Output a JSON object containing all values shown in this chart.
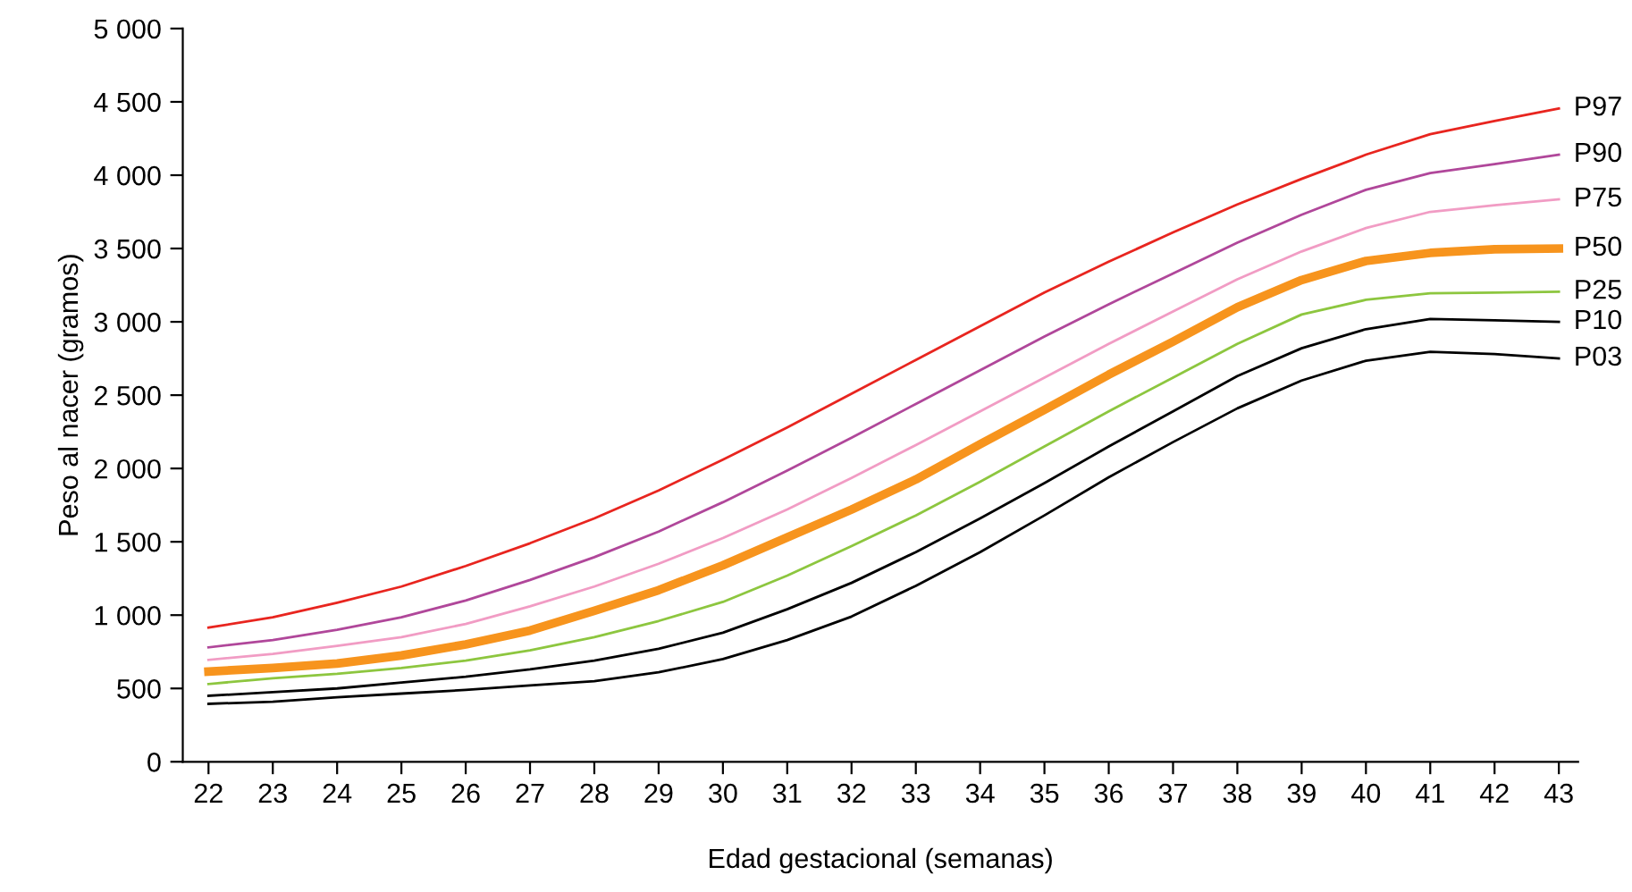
{
  "chart_data": {
    "type": "line",
    "xlabel": "Edad gestacional (semanas)",
    "ylabel": "Peso al nacer (gramos)",
    "x": [
      22,
      23,
      24,
      25,
      26,
      27,
      28,
      29,
      30,
      31,
      32,
      33,
      34,
      35,
      36,
      37,
      38,
      39,
      40,
      41,
      42,
      43
    ],
    "xlim": [
      21.6,
      43.3
    ],
    "xticks": [
      22,
      23,
      24,
      25,
      26,
      27,
      28,
      29,
      30,
      31,
      32,
      33,
      34,
      35,
      36,
      37,
      38,
      39,
      40,
      41,
      42,
      43
    ],
    "ylim": [
      0,
      5000
    ],
    "yticks": [
      0,
      500,
      {
        "value": 1000,
        "label": "1 000"
      },
      {
        "value": 1500,
        "label": "1 500"
      },
      {
        "value": 2000,
        "label": "2 000"
      },
      {
        "value": 2500,
        "label": "2 500"
      },
      {
        "value": 3000,
        "label": "3 000"
      },
      {
        "value": 3500,
        "label": "3 500"
      },
      {
        "value": 4000,
        "label": "4 000"
      },
      {
        "value": 4500,
        "label": "4 500"
      },
      {
        "value": 5000,
        "label": "5 000"
      }
    ],
    "grid": false,
    "legend": false,
    "marker": "none",
    "line_style": "solid",
    "series": [
      {
        "name": "P97",
        "color": "#e8251f",
        "values": [
          915,
          985,
          1085,
          1195,
          1335,
          1490,
          1660,
          1850,
          2060,
          2280,
          2510,
          2740,
          2970,
          3200,
          3410,
          3610,
          3800,
          3975,
          4140,
          4280,
          4370,
          4455
        ]
      },
      {
        "name": "P90",
        "color": "#b0479a",
        "values": [
          780,
          830,
          900,
          985,
          1100,
          1240,
          1395,
          1570,
          1770,
          1985,
          2210,
          2440,
          2670,
          2900,
          3120,
          3330,
          3540,
          3730,
          3900,
          4015,
          4075,
          4140
        ]
      },
      {
        "name": "P75",
        "color": "#f19cc4",
        "values": [
          695,
          735,
          790,
          850,
          940,
          1060,
          1195,
          1350,
          1525,
          1720,
          1935,
          2160,
          2390,
          2620,
          2850,
          3070,
          3290,
          3480,
          3640,
          3750,
          3795,
          3835
        ]
      },
      {
        "name": "P50",
        "color": "#f7941d",
        "values": [
          615,
          640,
          670,
          725,
          800,
          895,
          1030,
          1170,
          1340,
          1530,
          1720,
          1925,
          2165,
          2400,
          2640,
          2865,
          3100,
          3285,
          3415,
          3470,
          3495,
          3500
        ]
      },
      {
        "name": "P25",
        "color": "#8dc63f",
        "values": [
          530,
          570,
          600,
          640,
          690,
          760,
          850,
          960,
          1090,
          1270,
          1470,
          1680,
          1910,
          2150,
          2390,
          2620,
          2850,
          3050,
          3150,
          3195,
          3200,
          3205
        ]
      },
      {
        "name": "P10",
        "color": "#000000",
        "values": [
          450,
          475,
          500,
          540,
          580,
          630,
          690,
          770,
          880,
          1040,
          1220,
          1430,
          1660,
          1900,
          2150,
          2390,
          2630,
          2820,
          2950,
          3020,
          3010,
          3000
        ]
      },
      {
        "name": "P03",
        "color": "#000000",
        "values": [
          395,
          410,
          440,
          465,
          490,
          520,
          550,
          610,
          700,
          830,
          990,
          1200,
          1430,
          1680,
          1940,
          2180,
          2410,
          2600,
          2735,
          2795,
          2780,
          2750
        ]
      }
    ]
  }
}
